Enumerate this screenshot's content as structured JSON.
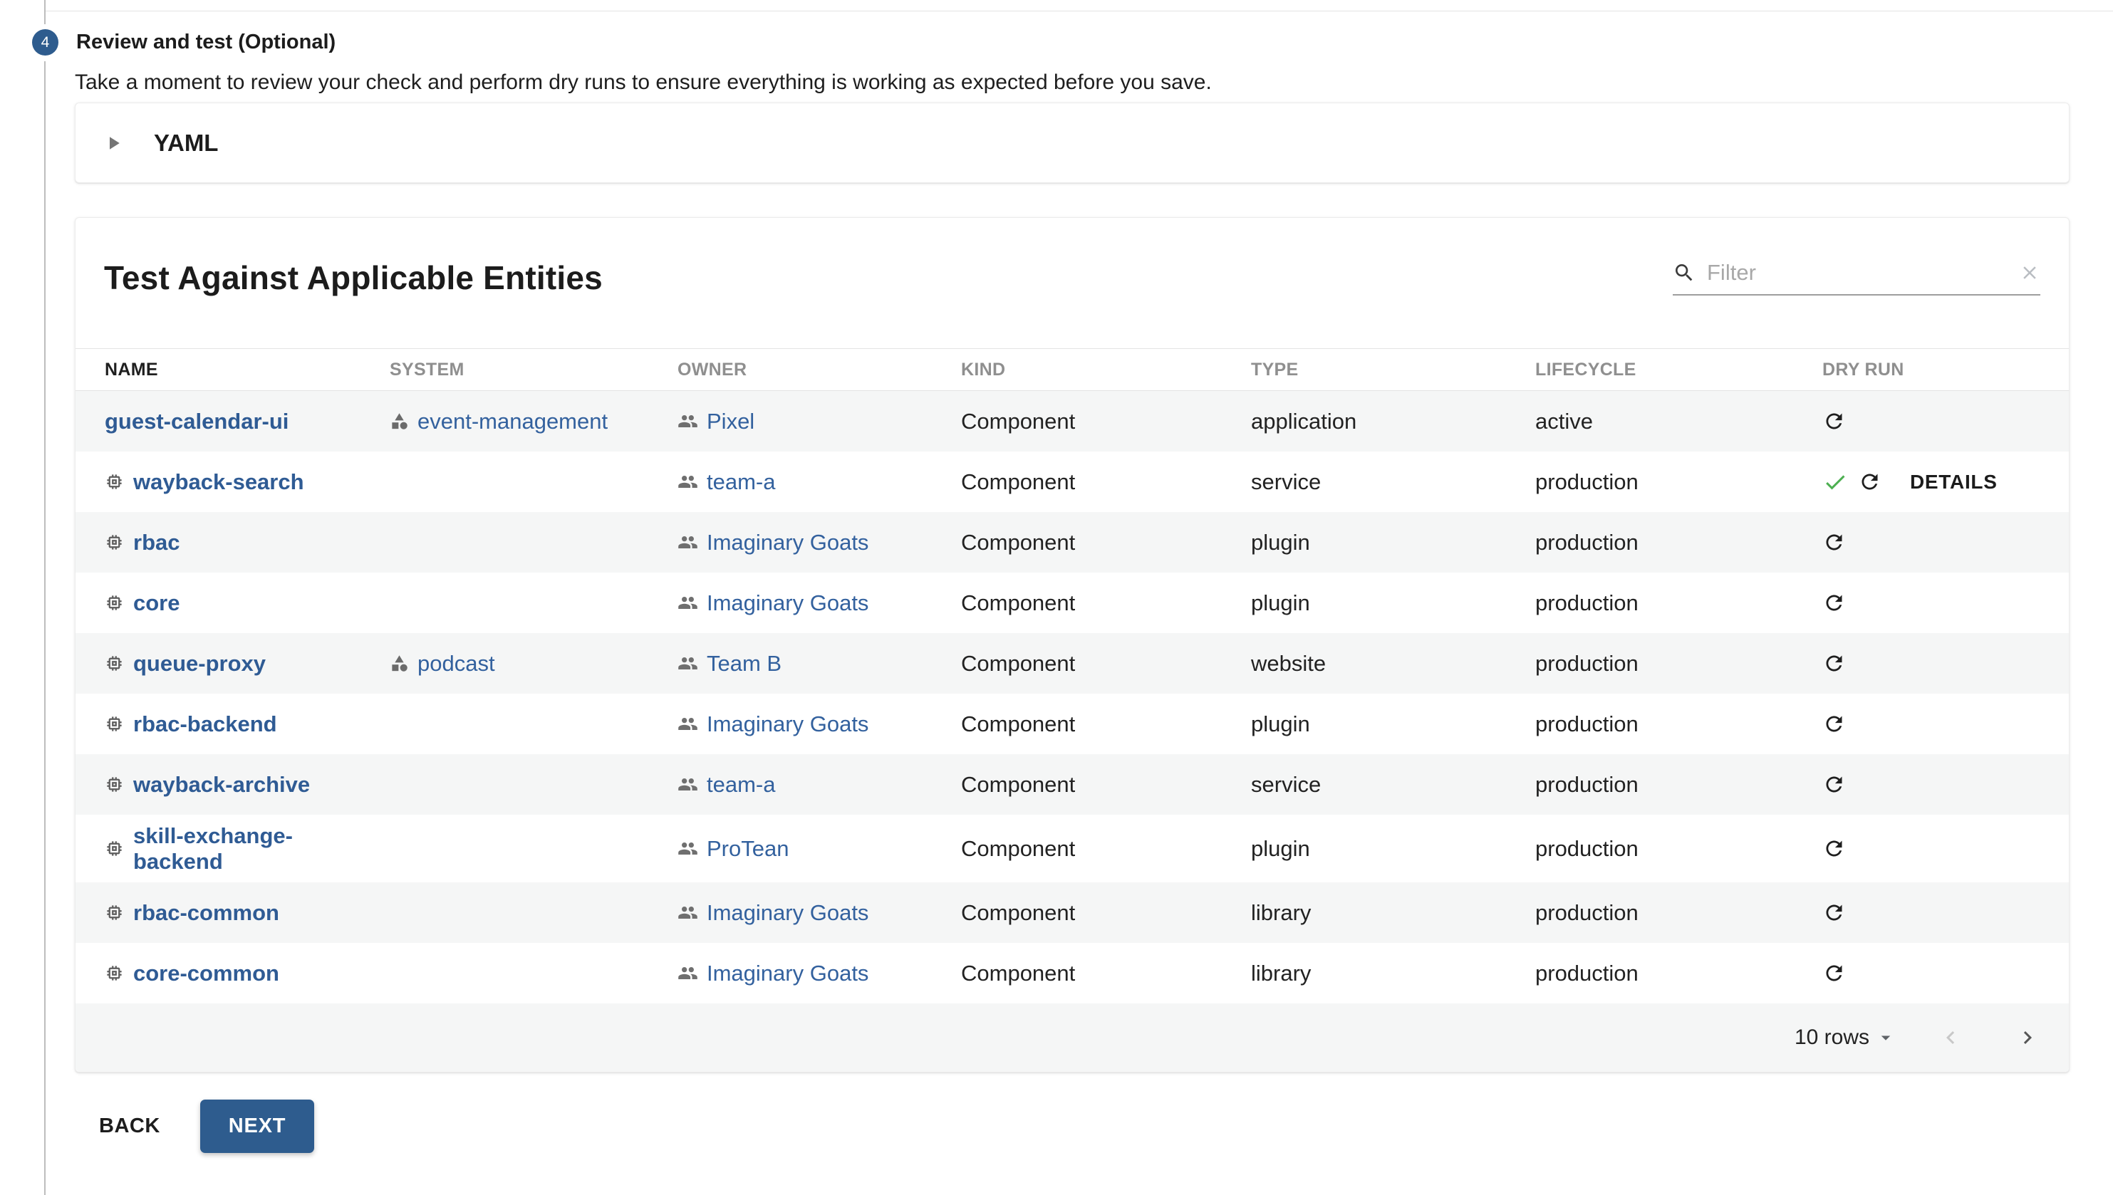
{
  "colors": {
    "primary_blue": "#2E5C8E",
    "name_link_blue": "#2F5B94",
    "secondary_link_blue": "#33619E",
    "success_green": "#4CAF50",
    "row_stripe_gray": "#F5F6F6"
  },
  "stepper": {
    "number": "4",
    "title": "Review and test (Optional)",
    "description": "Take a moment to review your check and perform dry runs to ensure everything is working as expected before you save."
  },
  "yaml_panel": {
    "title": "YAML",
    "expand_icon": "arrow-right-icon"
  },
  "entities_panel": {
    "title": "Test Against Applicable Entities",
    "filter_placeholder": "Filter",
    "filter_value": "",
    "icons": [
      "search-icon",
      "clear-x-icon"
    ],
    "columns": [
      "NAME",
      "SYSTEM",
      "OWNER",
      "KIND",
      "TYPE",
      "LIFECYCLE",
      "DRY RUN"
    ],
    "rows": [
      {
        "name": "guest-calendar-ui",
        "name_icon": false,
        "system": "event-management",
        "owner": "Pixel",
        "kind": "Component",
        "type": "application",
        "lifecycle": "active",
        "dry_run": {
          "success": false,
          "details_label": null
        }
      },
      {
        "name": "wayback-search",
        "name_icon": true,
        "system": "",
        "owner": "team-a",
        "kind": "Component",
        "type": "service",
        "lifecycle": "production",
        "dry_run": {
          "success": true,
          "details_label": "DETAILS"
        }
      },
      {
        "name": "rbac",
        "name_icon": true,
        "system": "",
        "owner": "Imaginary Goats",
        "kind": "Component",
        "type": "plugin",
        "lifecycle": "production",
        "dry_run": {
          "success": false,
          "details_label": null
        }
      },
      {
        "name": "core",
        "name_icon": true,
        "system": "",
        "owner": "Imaginary Goats",
        "kind": "Component",
        "type": "plugin",
        "lifecycle": "production",
        "dry_run": {
          "success": false,
          "details_label": null
        }
      },
      {
        "name": "queue-proxy",
        "name_icon": true,
        "system": "podcast",
        "owner": "Team B",
        "kind": "Component",
        "type": "website",
        "lifecycle": "production",
        "dry_run": {
          "success": false,
          "details_label": null
        }
      },
      {
        "name": "rbac-backend",
        "name_icon": true,
        "system": "",
        "owner": "Imaginary Goats",
        "kind": "Component",
        "type": "plugin",
        "lifecycle": "production",
        "dry_run": {
          "success": false,
          "details_label": null
        }
      },
      {
        "name": "wayback-archive",
        "name_icon": true,
        "system": "",
        "owner": "team-a",
        "kind": "Component",
        "type": "service",
        "lifecycle": "production",
        "dry_run": {
          "success": false,
          "details_label": null
        }
      },
      {
        "name": "skill-exchange-backend",
        "name_icon": true,
        "system": "",
        "owner": "ProTean",
        "kind": "Component",
        "type": "plugin",
        "lifecycle": "production",
        "dry_run": {
          "success": false,
          "details_label": null
        }
      },
      {
        "name": "rbac-common",
        "name_icon": true,
        "system": "",
        "owner": "Imaginary Goats",
        "kind": "Component",
        "type": "library",
        "lifecycle": "production",
        "dry_run": {
          "success": false,
          "details_label": null
        }
      },
      {
        "name": "core-common",
        "name_icon": true,
        "system": "",
        "owner": "Imaginary Goats",
        "kind": "Component",
        "type": "library",
        "lifecycle": "production",
        "dry_run": {
          "success": false,
          "details_label": null
        }
      }
    ],
    "row_icons": {
      "name": "memory-chip-icon",
      "system": "category-shapes-icon",
      "owner": "people-icon",
      "dry_run": "refresh-icon",
      "success": "check-icon"
    },
    "footer": {
      "rows_label": "10 rows",
      "icons": [
        "dropdown-caret-icon",
        "chevron-left-icon",
        "chevron-right-icon"
      ]
    }
  },
  "actions": {
    "back_label": "BACK",
    "next_label": "NEXT"
  }
}
